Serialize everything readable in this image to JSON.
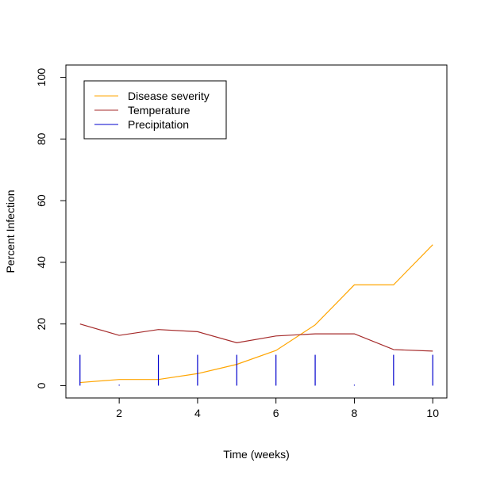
{
  "chart_data": {
    "type": "line",
    "title": "",
    "xlabel": "Time (weeks)",
    "ylabel": "Percent Infection",
    "xlim": [
      0.64,
      10.36
    ],
    "ylim": [
      -4,
      104
    ],
    "x_ticks": [
      2,
      4,
      6,
      8,
      10
    ],
    "y_ticks": [
      0,
      20,
      40,
      60,
      80,
      100
    ],
    "grid": false,
    "legend_position": "top-left",
    "x": [
      1,
      2,
      3,
      4,
      5,
      6,
      7,
      8,
      9,
      10
    ],
    "series": [
      {
        "name": "Disease severity",
        "style": "line",
        "color": "#FFA500",
        "values": [
          1.0,
          2.0,
          2.0,
          3.9,
          6.9,
          11.4,
          19.7,
          32.7,
          32.7,
          45.7
        ]
      },
      {
        "name": "Temperature",
        "style": "line",
        "color": "#A52A2A",
        "values": [
          20.0,
          16.3,
          18.2,
          17.5,
          13.9,
          16.1,
          16.8,
          16.8,
          11.7,
          11.2
        ]
      },
      {
        "name": "Precipitation",
        "style": "histogram",
        "color": "#0000CD",
        "values": [
          10,
          0.3,
          10,
          10,
          10,
          10,
          10,
          0.3,
          10,
          10
        ]
      }
    ]
  }
}
